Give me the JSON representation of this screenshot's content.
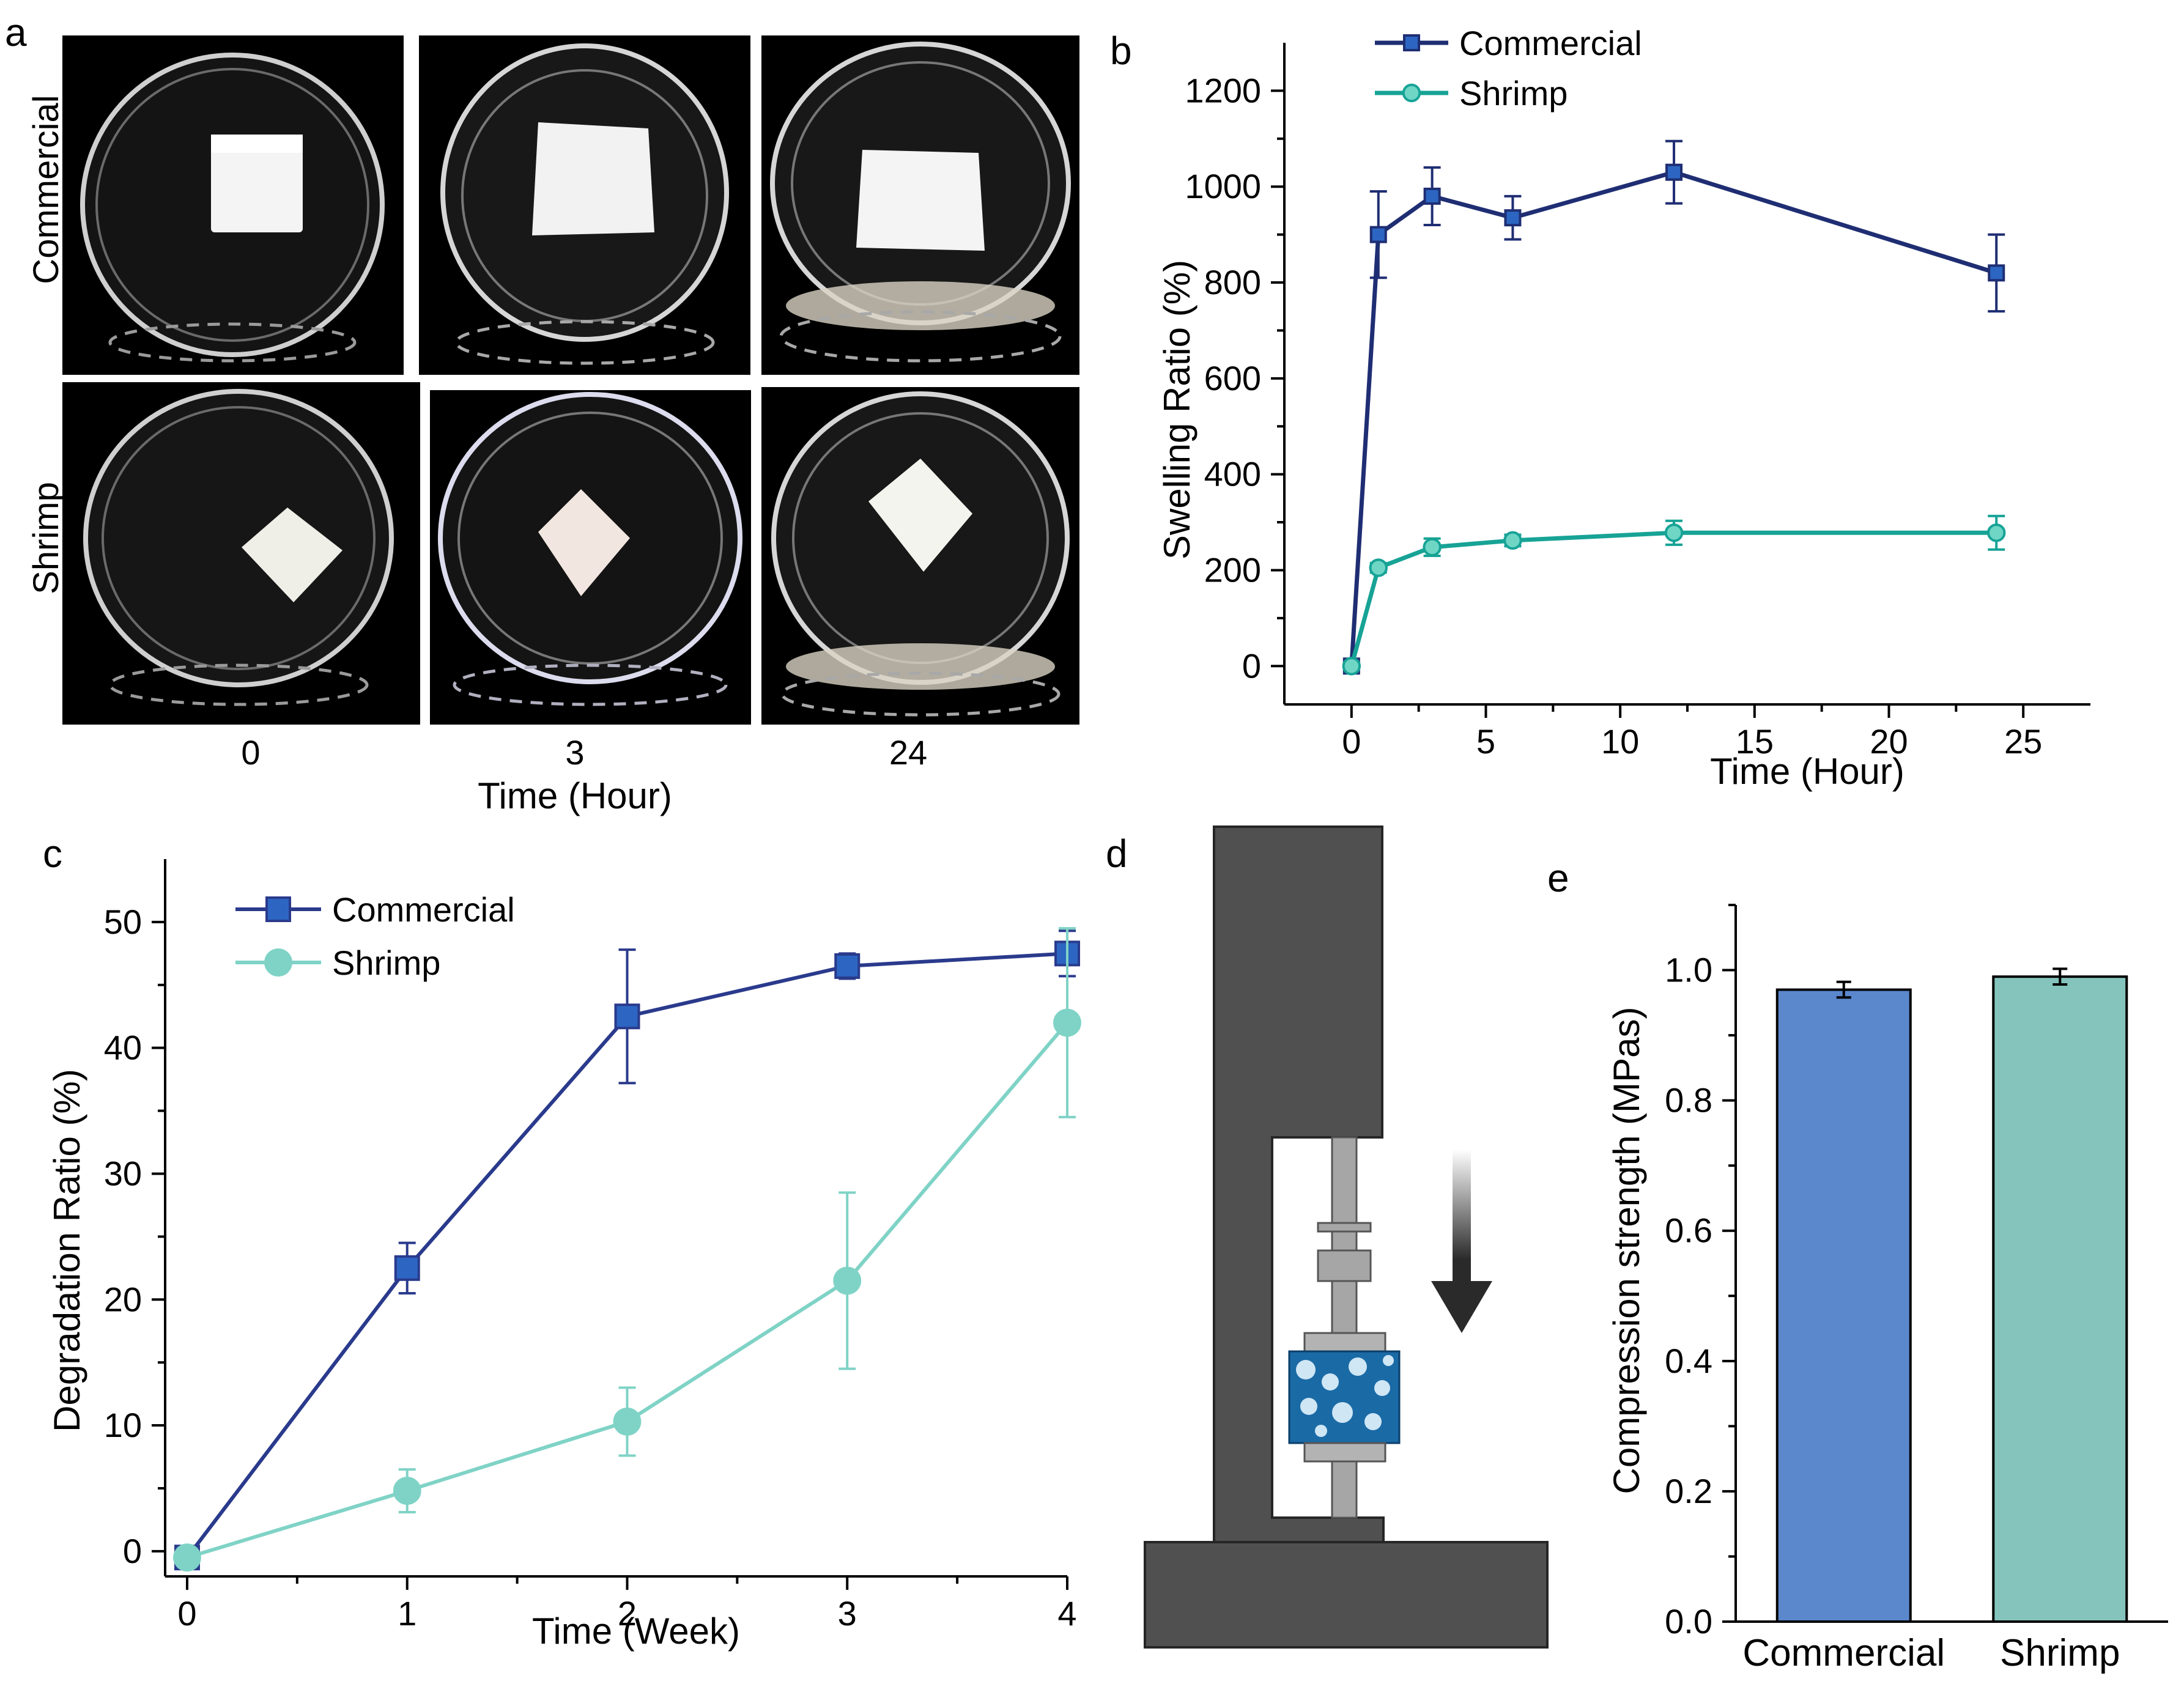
{
  "panel_letters": {
    "a": "a",
    "b": "b",
    "c": "c",
    "d": "d",
    "e": "e"
  },
  "panel_a": {
    "row_labels": [
      "Commercial",
      "Shrimp"
    ],
    "time_labels": [
      "0",
      "3",
      "24"
    ],
    "xlabel": "Time (Hour)"
  },
  "chart_data": [
    {
      "panel": "b",
      "type": "line",
      "xlabel": "Time (Hour)",
      "ylabel": "Swelling Ratio (%)",
      "xlim": [
        -2.5,
        27.5
      ],
      "ylim": [
        -80,
        1300
      ],
      "xticks": [
        "0",
        "5",
        "10",
        "15",
        "20",
        "25"
      ],
      "yticks": [
        "0",
        "200",
        "400",
        "600",
        "800",
        "1000",
        "1200"
      ],
      "legend_position": "top-left",
      "grid": false,
      "series": [
        {
          "name": "Commercial",
          "marker": "square",
          "color": "#1f2e73",
          "fill": "#2c66c2",
          "x": [
            0,
            1,
            3,
            6,
            12,
            24
          ],
          "y": [
            0,
            900,
            980,
            935,
            1030,
            820
          ],
          "err": [
            0,
            90,
            60,
            45,
            65,
            80
          ]
        },
        {
          "name": "Shrimp",
          "marker": "circle",
          "color": "#17a396",
          "fill": "#6fd6c6",
          "x": [
            0,
            1,
            3,
            6,
            12,
            24
          ],
          "y": [
            0,
            205,
            248,
            262,
            278,
            278
          ],
          "err": [
            0,
            10,
            18,
            12,
            25,
            35
          ]
        }
      ]
    },
    {
      "panel": "c",
      "type": "line",
      "xlabel": "Time (Week)",
      "ylabel": "Degradation Ratio (%)",
      "xlim": [
        -0.1,
        4.0
      ],
      "ylim": [
        -2,
        55
      ],
      "xticks": [
        "0",
        "1",
        "2",
        "3",
        "4"
      ],
      "yticks": [
        "0",
        "10",
        "20",
        "30",
        "40",
        "50"
      ],
      "legend_position": "top-left",
      "grid": false,
      "series": [
        {
          "name": "Commercial",
          "marker": "square",
          "color": "#2a3a8c",
          "fill": "#2c66c2",
          "x": [
            0,
            1,
            2,
            3,
            4
          ],
          "y": [
            -0.5,
            22.5,
            42.5,
            46.5,
            47.5
          ],
          "err": [
            0,
            2.0,
            5.3,
            1.0,
            1.8
          ]
        },
        {
          "name": "Shrimp",
          "marker": "circle",
          "color": "#7fd3c6",
          "fill": "#7fd3c6",
          "x": [
            0,
            1,
            2,
            3,
            4
          ],
          "y": [
            -0.5,
            4.8,
            10.3,
            21.5,
            42
          ],
          "err": [
            0,
            1.7,
            2.7,
            7.0,
            7.5
          ]
        }
      ]
    },
    {
      "panel": "e",
      "type": "bar",
      "ylabel": "Compression strength (MPas)",
      "ylim": [
        0,
        1.1
      ],
      "yticks": [
        "0.0",
        "0.2",
        "0.4",
        "0.6",
        "0.8",
        "1.0"
      ],
      "categories": [
        "Commercial",
        "Shrimp"
      ],
      "values": [
        0.97,
        0.99
      ],
      "err": [
        0.012,
        0.012
      ],
      "colors": [
        "#5b87cc",
        "#84c4bc"
      ]
    }
  ],
  "colors": {
    "photo_background": "#000000",
    "machine": "#505050",
    "rod": "#a6a6a6",
    "sample": "#1a6aa6"
  }
}
